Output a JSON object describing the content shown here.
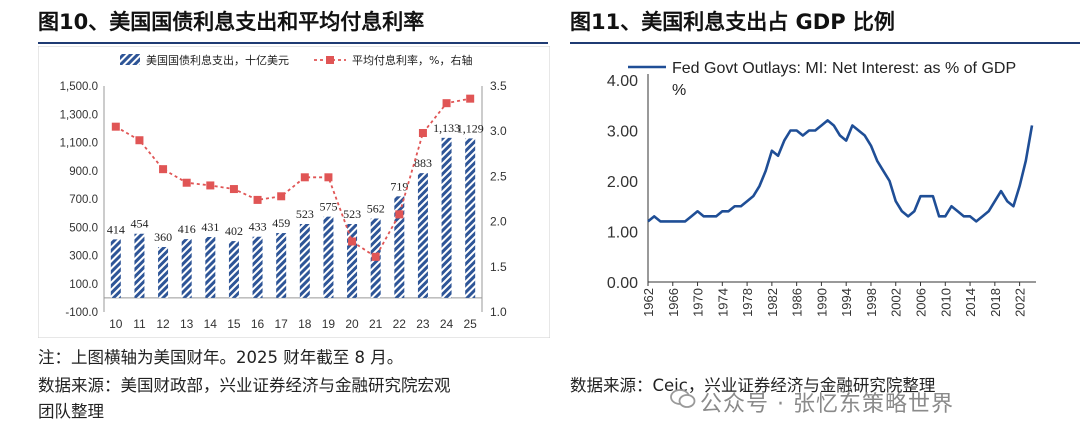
{
  "figure10": {
    "title": "图10、美国国债利息支出和平均付息利率",
    "note": "注：上图横轴为美国财年。2025 财年截至 8 月。",
    "source_line1": "数据来源：美国财政部，兴业证券经济与金融研究院宏观",
    "source_line2": "团队整理",
    "colors": {
      "bar": "#2e5597",
      "line": "#e05555"
    }
  },
  "figure11": {
    "title": "图11、美国利息支出占 GDP 比例",
    "source": "数据来源：Ceic，兴业证券经济与金融研究院整理",
    "colors": {
      "line": "#1f4e96"
    }
  },
  "watermark": "公众号 · 张忆东策略世界",
  "chart_data": [
    {
      "type": "bar",
      "categories": [
        "10",
        "11",
        "12",
        "13",
        "14",
        "15",
        "16",
        "17",
        "18",
        "19",
        "20",
        "21",
        "22",
        "23",
        "24",
        "25"
      ],
      "series": [
        {
          "name": "美国国债利息支出，十亿美元",
          "type": "bar",
          "axis": "left",
          "values": [
            414,
            454,
            360,
            416,
            431,
            402,
            433,
            459,
            523,
            575,
            523,
            562,
            719,
            883,
            1133,
            1129
          ],
          "labels": [
            "414",
            "454",
            "360",
            "416",
            "431",
            "402",
            "433",
            "459",
            "523",
            "575",
            "523",
            "562",
            "719",
            "883",
            "1,133",
            "1,129"
          ]
        },
        {
          "name": "平均付息利率，%，右轴",
          "type": "line",
          "axis": "right",
          "values": [
            3.05,
            2.9,
            2.58,
            2.43,
            2.4,
            2.36,
            2.24,
            2.28,
            2.49,
            2.49,
            1.78,
            1.61,
            2.08,
            2.98,
            3.31,
            3.36
          ]
        }
      ],
      "y_left": {
        "ticks": [
          "-100.0",
          "100.0",
          "300.0",
          "500.0",
          "700.0",
          "900.0",
          "1,100.0",
          "1,300.0",
          "1,500.0"
        ],
        "ylim": [
          -100,
          1500
        ]
      },
      "y_right": {
        "ticks": [
          "1.0",
          "1.5",
          "2.0",
          "2.5",
          "3.0",
          "3.5"
        ],
        "ylim": [
          1.0,
          3.5
        ]
      },
      "legend": "top"
    },
    {
      "type": "line",
      "series": [
        {
          "name": "Fed Govt Outlays: MI: Net Interest: as % of GDP",
          "name_line1": "Fed Govt Outlays: MI: Net Interest: as % of GDP",
          "name_line2": "%",
          "x": [
            1962,
            1963,
            1964,
            1965,
            1966,
            1967,
            1968,
            1969,
            1970,
            1971,
            1972,
            1973,
            1974,
            1975,
            1976,
            1977,
            1978,
            1979,
            1980,
            1981,
            1982,
            1983,
            1984,
            1985,
            1986,
            1987,
            1988,
            1989,
            1990,
            1991,
            1992,
            1993,
            1994,
            1995,
            1996,
            1997,
            1998,
            1999,
            2000,
            2001,
            2002,
            2003,
            2004,
            2005,
            2006,
            2007,
            2008,
            2009,
            2010,
            2011,
            2012,
            2013,
            2014,
            2015,
            2016,
            2017,
            2018,
            2019,
            2020,
            2021,
            2022,
            2023,
            2024
          ],
          "values": [
            1.2,
            1.3,
            1.2,
            1.2,
            1.2,
            1.2,
            1.2,
            1.3,
            1.4,
            1.3,
            1.3,
            1.3,
            1.4,
            1.4,
            1.5,
            1.5,
            1.6,
            1.7,
            1.9,
            2.2,
            2.6,
            2.5,
            2.8,
            3.0,
            3.0,
            2.9,
            3.0,
            3.0,
            3.1,
            3.2,
            3.1,
            2.9,
            2.8,
            3.1,
            3.0,
            2.9,
            2.7,
            2.4,
            2.2,
            2.0,
            1.6,
            1.4,
            1.3,
            1.4,
            1.7,
            1.7,
            1.7,
            1.3,
            1.3,
            1.5,
            1.4,
            1.3,
            1.3,
            1.2,
            1.3,
            1.4,
            1.6,
            1.8,
            1.6,
            1.5,
            1.9,
            2.4,
            3.1
          ]
        }
      ],
      "x_ticks": [
        "1962",
        "1966",
        "1970",
        "1974",
        "1978",
        "1982",
        "1986",
        "1990",
        "1994",
        "1998",
        "2002",
        "2006",
        "2010",
        "2014",
        "2018",
        "2022"
      ],
      "y_ticks": [
        "0.00",
        "1.00",
        "2.00",
        "3.00",
        "4.00"
      ],
      "ylim": [
        0,
        4
      ],
      "legend": "top"
    }
  ]
}
